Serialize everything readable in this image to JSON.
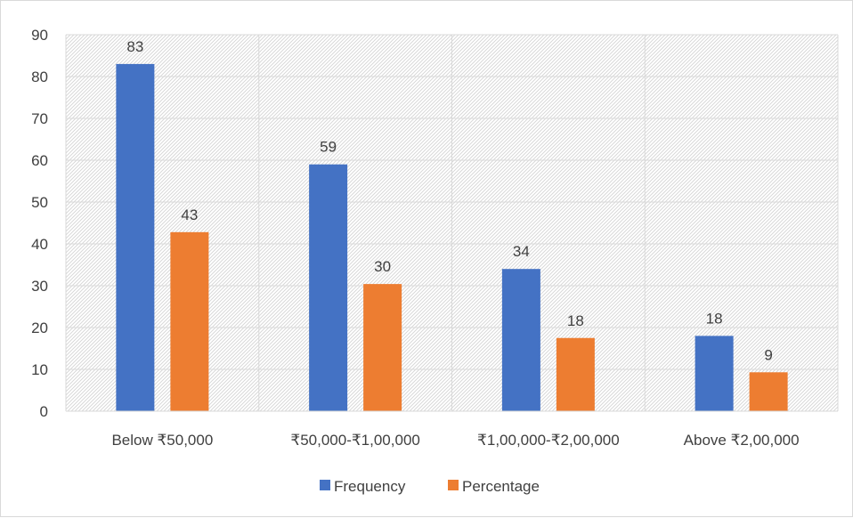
{
  "chart_data": {
    "type": "bar",
    "categories": [
      "Below ₹50,000",
      "₹50,000-₹1,00,000",
      "₹1,00,000-₹2,00,000",
      "Above ₹2,00,000"
    ],
    "series": [
      {
        "name": "Frequency",
        "values": [
          83,
          59,
          34,
          18
        ],
        "color": "#4472C4",
        "labels": [
          "83",
          "59",
          "34",
          "18"
        ]
      },
      {
        "name": "Percentage",
        "values": [
          42.8,
          30.4,
          17.5,
          9.3
        ],
        "color": "#ED7D31",
        "labels": [
          "43",
          "30",
          "18",
          "9"
        ]
      }
    ],
    "title": "",
    "xlabel": "",
    "ylabel": "",
    "ylim": [
      0,
      90
    ],
    "yticks": [
      0,
      10,
      20,
      30,
      40,
      50,
      60,
      70,
      80,
      90
    ],
    "grid": true,
    "plot_background": "diagonal-hatch",
    "legend_position": "bottom"
  }
}
